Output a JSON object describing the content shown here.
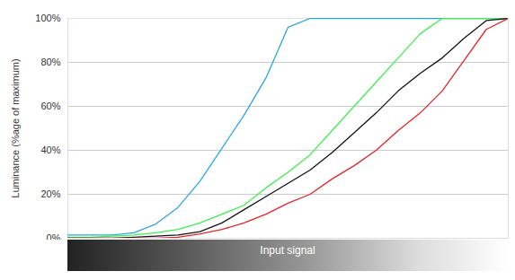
{
  "chart_data": {
    "type": "line",
    "xlabel": "Input signal",
    "ylabel": "Luminance (%age of maximum)",
    "x": [
      0,
      5,
      10,
      15,
      20,
      25,
      30,
      35,
      40,
      45,
      50,
      55,
      60,
      65,
      70,
      75,
      80,
      85,
      90,
      95,
      100
    ],
    "series": [
      {
        "color": "#29a7e1",
        "values": [
          1.5,
          1.5,
          1.5,
          2.5,
          6.5,
          14,
          26,
          41,
          56,
          73,
          96,
          100,
          100,
          100,
          100,
          100,
          100,
          100,
          100,
          100,
          100
        ]
      },
      {
        "color": "#3cf050",
        "values": [
          0.5,
          0.5,
          1,
          1.5,
          2.5,
          4,
          7,
          11,
          15,
          23,
          30,
          38,
          49,
          60,
          71,
          82,
          93,
          100,
          100,
          100,
          100
        ]
      },
      {
        "color": "#111111",
        "values": [
          0,
          0,
          0,
          0.5,
          1,
          1.5,
          3,
          7,
          13,
          19,
          25,
          31,
          39,
          48,
          57,
          67,
          75,
          82,
          91,
          99,
          100
        ]
      },
      {
        "color": "#e8232b",
        "values": [
          0,
          0,
          0,
          0,
          0,
          0.5,
          2,
          4,
          7,
          11,
          16,
          20,
          27,
          33,
          40,
          49,
          57,
          67,
          81,
          95,
          100
        ]
      }
    ],
    "xlim": [
      0,
      100
    ],
    "xticks": [],
    "ylim": [
      0,
      100
    ],
    "yticks": [
      {
        "value": 0,
        "label": "0%"
      },
      {
        "value": 20,
        "label": "20%"
      },
      {
        "value": 40,
        "label": "40%"
      },
      {
        "value": 60,
        "label": "60%"
      },
      {
        "value": 80,
        "label": "80%"
      },
      {
        "value": 100,
        "label": "100%"
      }
    ],
    "grid": true,
    "tick_labels": "y"
  }
}
